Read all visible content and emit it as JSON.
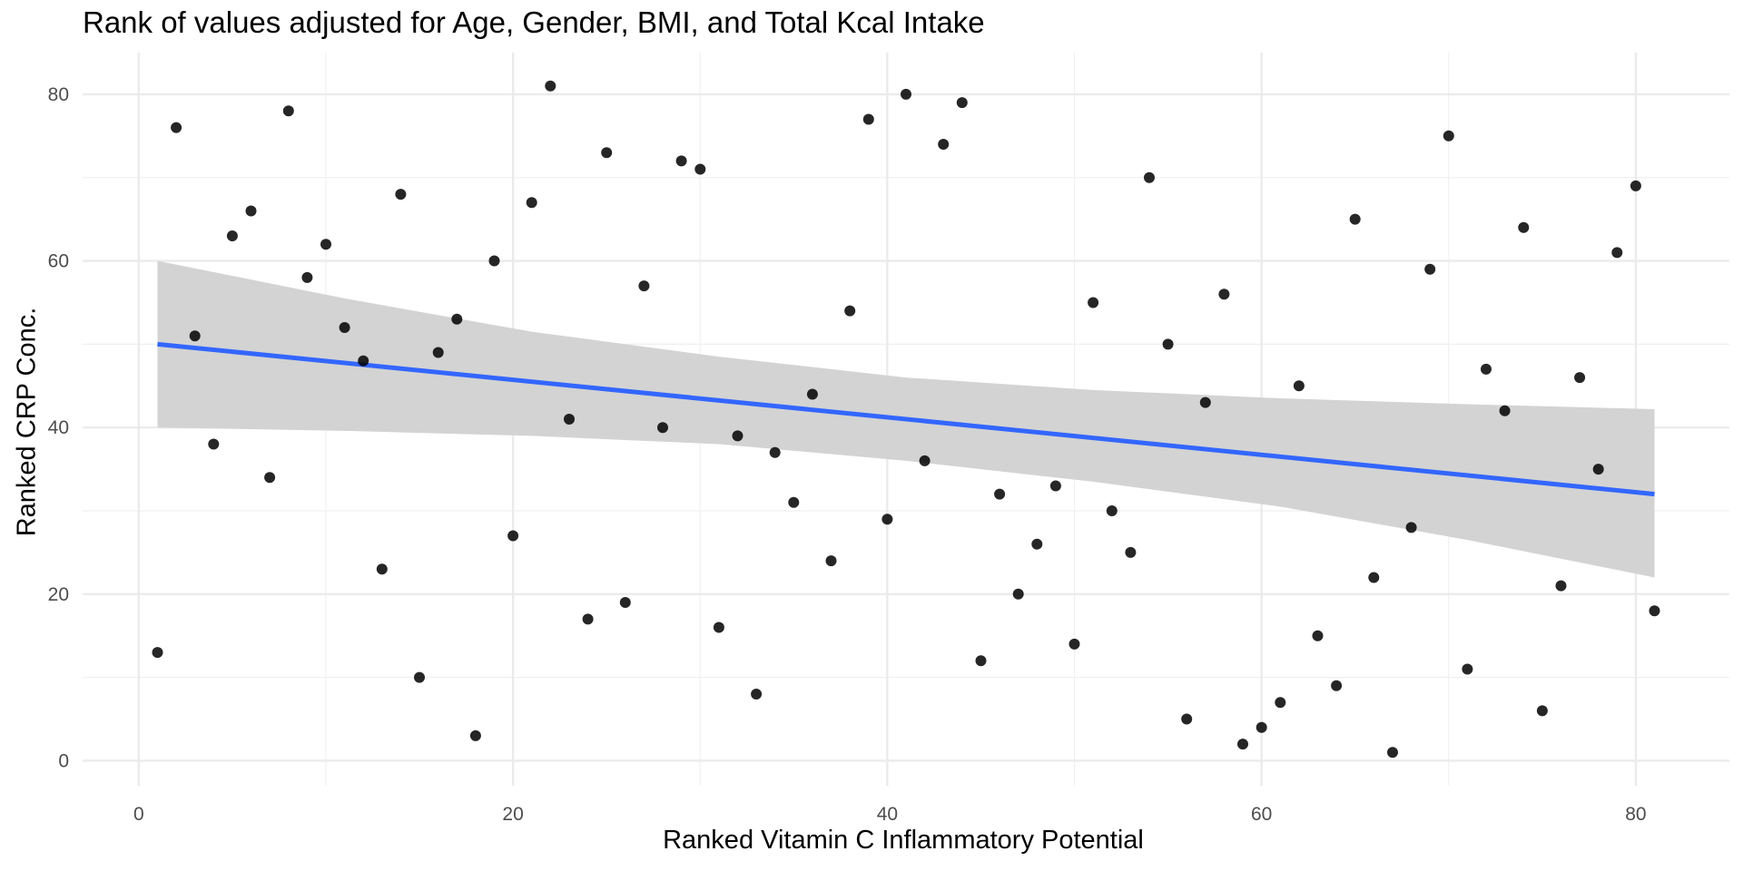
{
  "chart_data": {
    "type": "scatter",
    "title": "Rank of values adjusted for Age, Gender, BMI, and Total Kcal Intake",
    "xlabel": "Ranked Vitamin C Inflammatory Potential",
    "ylabel": "Ranked CRP Conc.",
    "xlim": [
      -3,
      85
    ],
    "ylim": [
      -3,
      85
    ],
    "x_ticks": [
      0,
      20,
      40,
      60,
      80
    ],
    "y_ticks": [
      0,
      20,
      40,
      60,
      80
    ],
    "grid": true,
    "points": {
      "x": [
        1,
        2,
        3,
        4,
        5,
        6,
        7,
        8,
        9,
        10,
        11,
        12,
        13,
        14,
        15,
        16,
        17,
        18,
        19,
        20,
        21,
        22,
        23,
        24,
        25,
        26,
        27,
        28,
        29,
        30,
        31,
        32,
        33,
        34,
        35,
        36,
        37,
        38,
        39,
        40,
        41,
        42,
        43,
        44,
        45,
        46,
        47,
        48,
        49,
        50,
        51,
        52,
        53,
        54,
        55,
        56,
        57,
        58,
        59,
        60,
        61,
        62,
        63,
        64,
        65,
        66,
        67,
        68,
        69,
        70,
        71,
        72,
        73,
        74,
        75,
        76,
        77,
        78,
        79,
        80,
        81
      ],
      "y": [
        13,
        76,
        51,
        38,
        63,
        66,
        34,
        78,
        58,
        62,
        52,
        48,
        23,
        68,
        10,
        49,
        53,
        3,
        60,
        27,
        67,
        81,
        41,
        17,
        73,
        19,
        57,
        40,
        72,
        71,
        16,
        39,
        8,
        37,
        31,
        44,
        24,
        54,
        77,
        29,
        80,
        36,
        74,
        79,
        12,
        32,
        20,
        26,
        33,
        14,
        55,
        30,
        25,
        70,
        50,
        5,
        43,
        56,
        2,
        4,
        7,
        45,
        15,
        9,
        65,
        22,
        1,
        28,
        59,
        75,
        11,
        47,
        42,
        64,
        6,
        21,
        46,
        35,
        61,
        69,
        18
      ]
    },
    "fit_line": {
      "method": "linear",
      "x": [
        1,
        81
      ],
      "y": [
        50,
        32
      ],
      "color": "#3366FF"
    },
    "confidence_band": {
      "x": [
        1,
        11,
        21,
        31,
        41,
        51,
        61,
        71,
        81
      ],
      "lower": [
        40,
        39.6,
        39,
        38,
        36,
        33.5,
        30.5,
        26.5,
        22
      ],
      "upper": [
        60,
        55.5,
        51.5,
        48.5,
        46,
        44.5,
        43.5,
        42.8,
        42.2
      ],
      "color": "#d3d3d3"
    },
    "point_color": "#000000"
  }
}
